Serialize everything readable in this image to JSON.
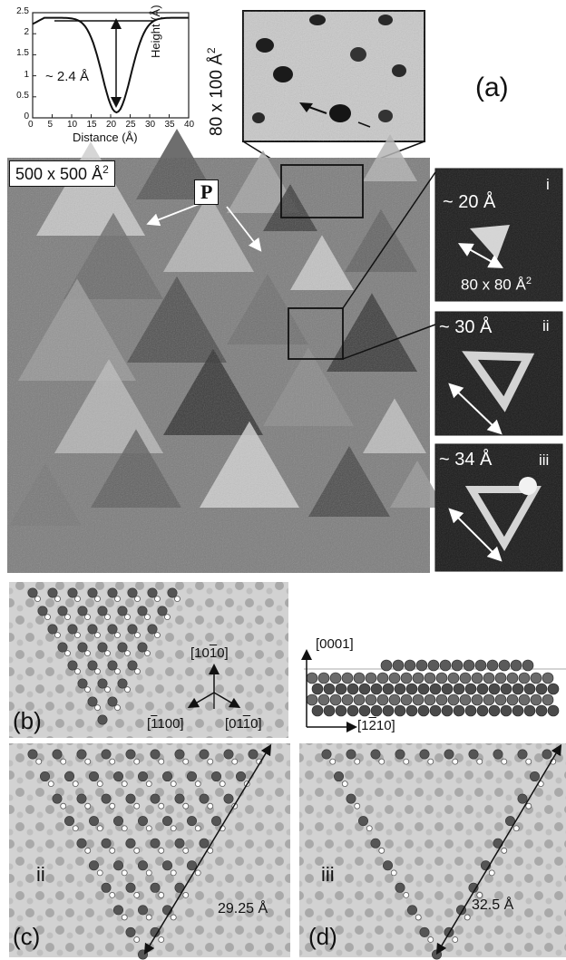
{
  "profile": {
    "x_label": "Distance (Å)",
    "y_label": "Height (Å)",
    "annotation": "~ 2.4 Å",
    "x_ticks": [
      "0",
      "5",
      "10",
      "15",
      "20",
      "25",
      "30",
      "35",
      "40"
    ],
    "y_ticks": [
      "2.5",
      "2",
      "1.5",
      "1",
      "0.5",
      "0"
    ],
    "xlim": [
      0,
      40
    ],
    "ylim": [
      0,
      2.5
    ]
  },
  "zoom_top": {
    "size_label": "80 x 100 Å",
    "size_sup": "2"
  },
  "panel_a": {
    "label": "(a)",
    "size_label": "500 x 500 Å",
    "size_sup": "2",
    "p_label": "P"
  },
  "insets": [
    {
      "roman": "i",
      "width_label": "~ 20 Å",
      "size_label": "80 x 80 Å",
      "size_sup": "2"
    },
    {
      "roman": "ii",
      "width_label": "~ 30 Å"
    },
    {
      "roman": "iii",
      "width_label": "~ 34 Å"
    }
  ],
  "panel_b": {
    "label": "(b)",
    "dir_up": "[10",
    "dir_up_bar": "1",
    "dir_up_end": "0]",
    "dir_left": "[",
    "dir_left_bar": "1",
    "dir_left_end": "100]",
    "dir_right": "[01",
    "dir_right_bar": "1",
    "dir_right_end": "0]",
    "axis_up": "[0001]",
    "axis_right": "[1",
    "axis_right_bar": "2",
    "axis_right_end": "10]"
  },
  "panel_c": {
    "label": "(c)",
    "roman": "ii",
    "length": "29.25 Å"
  },
  "panel_d": {
    "label": "(d)",
    "roman": "iii",
    "length": "32.5 Å"
  }
}
